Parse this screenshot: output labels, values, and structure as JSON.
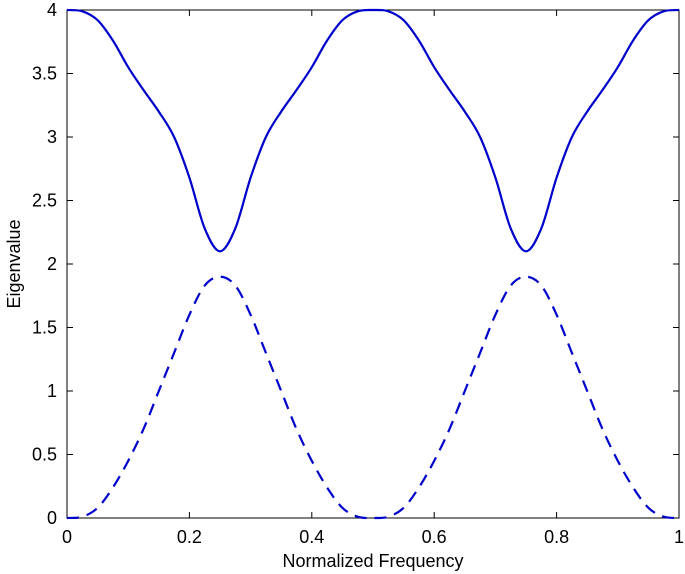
{
  "chart_data": {
    "type": "line",
    "title": "",
    "xlabel": "Normalized Frequency",
    "ylabel": "Eigenvalue",
    "xlim": [
      0,
      1
    ],
    "ylim": [
      0,
      4
    ],
    "grid": false,
    "x_ticks": [
      "0",
      "0.2",
      "0.4",
      "0.6",
      "0.8",
      "1"
    ],
    "y_ticks": [
      "0",
      "0.5",
      "1",
      "1.5",
      "2",
      "2.5",
      "3",
      "3.5",
      "4"
    ],
    "x_tick_values": [
      0,
      0.2,
      0.4,
      0.6,
      0.8,
      1
    ],
    "y_tick_values": [
      0,
      0.5,
      1,
      1.5,
      2,
      2.5,
      3,
      3.5,
      4
    ],
    "series": [
      {
        "style": "solid",
        "color": "#0000cc",
        "x": [
          0,
          0.025,
          0.05,
          0.075,
          0.1,
          0.125,
          0.15,
          0.175,
          0.2,
          0.225,
          0.25,
          0.275,
          0.3,
          0.325,
          0.35,
          0.375,
          0.4,
          0.425,
          0.45,
          0.475,
          0.5,
          0.525,
          0.55,
          0.575,
          0.6,
          0.625,
          0.65,
          0.675,
          0.7,
          0.725,
          0.75,
          0.775,
          0.8,
          0.825,
          0.85,
          0.875,
          0.9,
          0.925,
          0.95,
          0.975,
          1
        ],
        "y": [
          4.0,
          3.99,
          3.92,
          3.76,
          3.55,
          3.37,
          3.2,
          3.0,
          2.68,
          2.28,
          2.1,
          2.28,
          2.68,
          3.0,
          3.2,
          3.37,
          3.55,
          3.76,
          3.92,
          3.99,
          4.0,
          3.99,
          3.92,
          3.76,
          3.55,
          3.37,
          3.2,
          3.0,
          2.68,
          2.28,
          2.1,
          2.28,
          2.68,
          3.0,
          3.2,
          3.37,
          3.55,
          3.76,
          3.92,
          3.99,
          4.0
        ]
      },
      {
        "style": "dashed",
        "color": "#0000cc",
        "x": [
          0,
          0.025,
          0.05,
          0.075,
          0.1,
          0.125,
          0.15,
          0.175,
          0.2,
          0.225,
          0.25,
          0.275,
          0.3,
          0.325,
          0.35,
          0.375,
          0.4,
          0.425,
          0.45,
          0.475,
          0.5,
          0.525,
          0.55,
          0.575,
          0.6,
          0.625,
          0.65,
          0.675,
          0.7,
          0.725,
          0.75,
          0.775,
          0.8,
          0.825,
          0.85,
          0.875,
          0.9,
          0.925,
          0.95,
          0.975,
          1
        ],
        "y": [
          0.0,
          0.01,
          0.08,
          0.24,
          0.45,
          0.7,
          1.0,
          1.3,
          1.6,
          1.83,
          1.9,
          1.83,
          1.6,
          1.3,
          1.0,
          0.7,
          0.45,
          0.24,
          0.08,
          0.01,
          0.0,
          0.01,
          0.08,
          0.24,
          0.45,
          0.7,
          1.0,
          1.3,
          1.6,
          1.83,
          1.9,
          1.83,
          1.6,
          1.3,
          1.0,
          0.7,
          0.45,
          0.24,
          0.08,
          0.01,
          0.0
        ]
      }
    ]
  }
}
